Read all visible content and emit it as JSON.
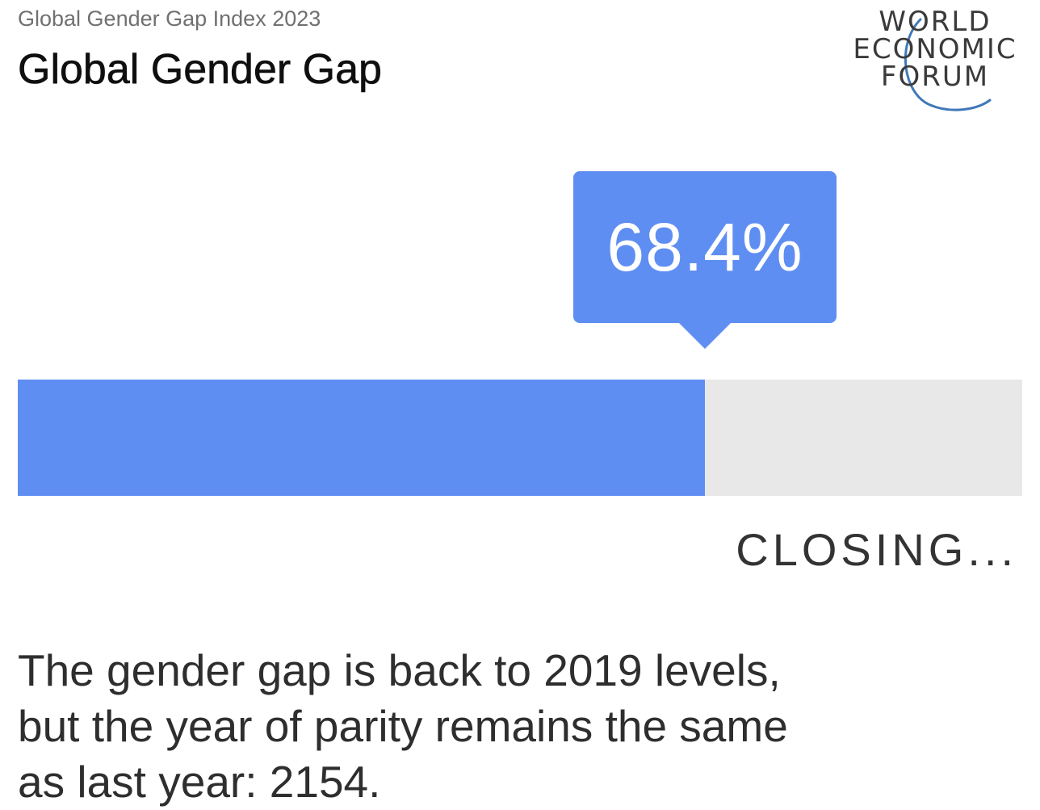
{
  "header": {
    "subtitle": "Global Gender Gap Index 2023",
    "title": "Global Gender Gap"
  },
  "logo": {
    "line1": "WORLD",
    "line2": "ECONOMIC",
    "line3": "FORUM"
  },
  "chart_data": {
    "type": "bar",
    "value": 68.4,
    "max": 100,
    "value_label": "68.4%",
    "status_label": "CLOSING..."
  },
  "caption": {
    "line1": "The gender gap is back to 2019 levels,",
    "line2": "but the year of parity remains the same",
    "line3": "as last year: 2154."
  },
  "colors": {
    "bar_fill": "#5f8ef2",
    "bar_track": "#e9e8e9",
    "logo_arc": "#3f78b8"
  }
}
